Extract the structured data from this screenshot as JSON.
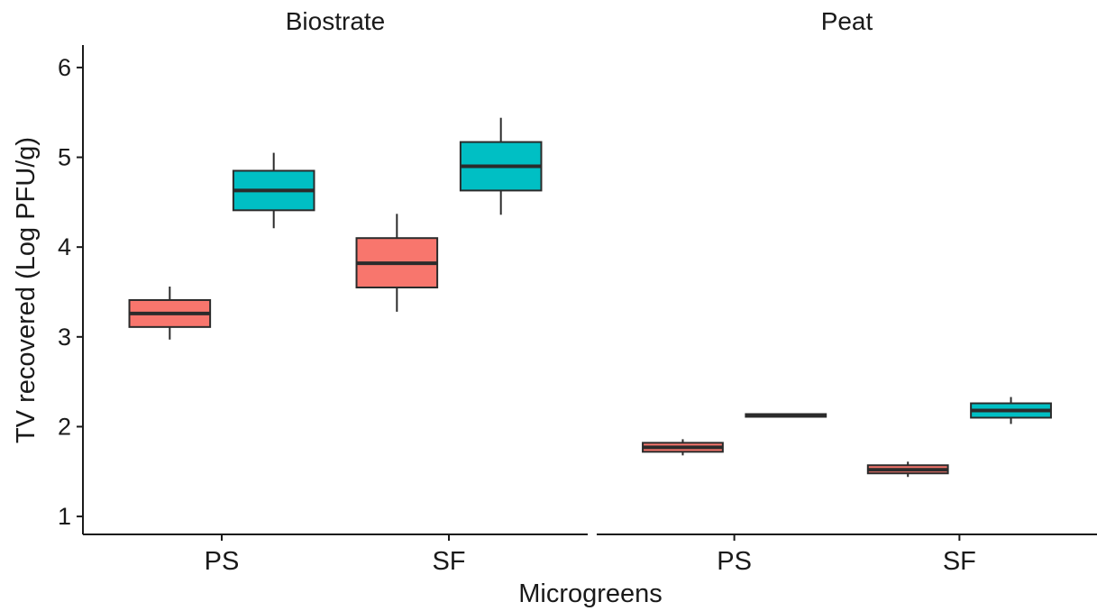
{
  "chart_data": {
    "type": "box",
    "ylabel": "TV recovered (Log PFU/g)",
    "xlabel": "Microgreens",
    "ylim": [
      0.8,
      6.25
    ],
    "yticks": [
      1,
      2,
      3,
      4,
      5,
      6
    ],
    "categories": [
      "PS",
      "SF"
    ],
    "colors": [
      "#F8766D",
      "#00BFC4"
    ],
    "grid": false,
    "legend": "none",
    "facets": [
      {
        "title": "Biostrate",
        "boxes": [
          {
            "category": "PS",
            "group": 0,
            "min": 2.97,
            "q1": 3.11,
            "median": 3.26,
            "q3": 3.41,
            "max": 3.56
          },
          {
            "category": "PS",
            "group": 1,
            "min": 4.21,
            "q1": 4.41,
            "median": 4.63,
            "q3": 4.85,
            "max": 5.05
          },
          {
            "category": "SF",
            "group": 0,
            "min": 3.28,
            "q1": 3.55,
            "median": 3.82,
            "q3": 4.1,
            "max": 4.37
          },
          {
            "category": "SF",
            "group": 1,
            "min": 4.36,
            "q1": 4.63,
            "median": 4.9,
            "q3": 5.17,
            "max": 5.44
          }
        ]
      },
      {
        "title": "Peat",
        "boxes": [
          {
            "category": "PS",
            "group": 0,
            "min": 1.68,
            "q1": 1.72,
            "median": 1.77,
            "q3": 1.82,
            "max": 1.86
          },
          {
            "category": "PS",
            "group": 1,
            "min": 2.11,
            "q1": 2.11,
            "median": 2.13,
            "q3": 2.14,
            "max": 2.14
          },
          {
            "category": "SF",
            "group": 0,
            "min": 1.44,
            "q1": 1.48,
            "median": 1.52,
            "q3": 1.57,
            "max": 1.61
          },
          {
            "category": "SF",
            "group": 1,
            "min": 2.03,
            "q1": 2.1,
            "median": 2.18,
            "q3": 2.26,
            "max": 2.33
          }
        ]
      }
    ]
  }
}
